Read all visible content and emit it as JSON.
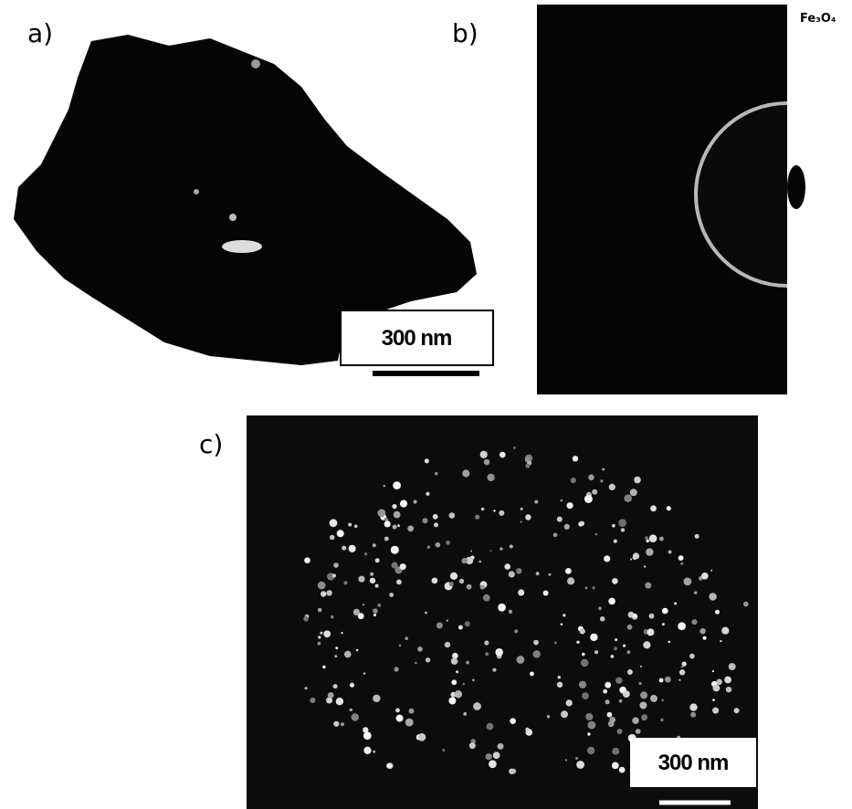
{
  "panels": [
    {
      "label": "a)",
      "scale_bar": "300 nm"
    },
    {
      "label": "b)",
      "annotation": "Fe₃O₄"
    },
    {
      "label": "c)",
      "scale_bar": "300 nm"
    }
  ]
}
